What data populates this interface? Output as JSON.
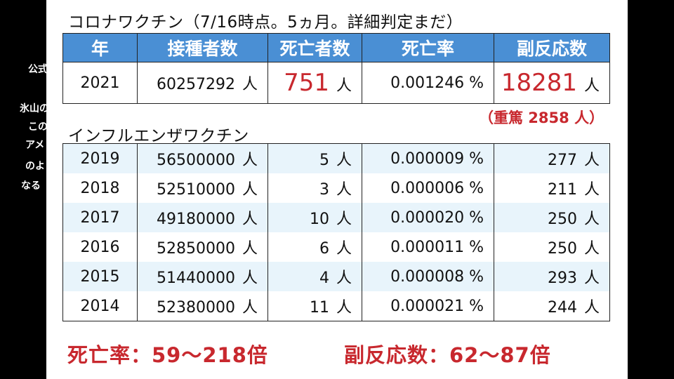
{
  "covid_title": "コロナワクチン（7/16時点。5ヵ月。詳細判定まだ）",
  "flu_title": "インフルエンザワクチン",
  "headers": [
    "年",
    "接種者数",
    "死亡者数",
    "死亡率",
    "副反応数"
  ],
  "covid_row": {
    "year": "2021",
    "vaccinated": "60257292",
    "deaths": "751",
    "rate": "0.001246 %",
    "reactions": "18281"
  },
  "unit": "人",
  "severe_note": "（重篤 2858 人）",
  "flu_rows": [
    {
      "year": "2019",
      "vaccinated": "56500000",
      "deaths": "5",
      "rate": "0.000009 %",
      "reactions": "277"
    },
    {
      "year": "2018",
      "vaccinated": "52510000",
      "deaths": "3",
      "rate": "0.000006 %",
      "reactions": "211"
    },
    {
      "year": "2017",
      "vaccinated": "49180000",
      "deaths": "10",
      "rate": "0.000020 %",
      "reactions": "250"
    },
    {
      "year": "2016",
      "vaccinated": "52850000",
      "deaths": "6",
      "rate": "0.000011 %",
      "reactions": "250"
    },
    {
      "year": "2015",
      "vaccinated": "51440000",
      "deaths": "4",
      "rate": "0.000008 %",
      "reactions": "293"
    },
    {
      "year": "2014",
      "vaccinated": "52380000",
      "deaths": "11",
      "rate": "0.000021 %",
      "reactions": "244"
    }
  ],
  "summary_death": "死亡率：59～218倍",
  "summary_reaction": "副反応数：62～87倍",
  "subtitle_fragments": [
    "公式発表",
    "氷山の一角",
    "この",
    "アメリカ",
    "のよう",
    "なる"
  ]
}
